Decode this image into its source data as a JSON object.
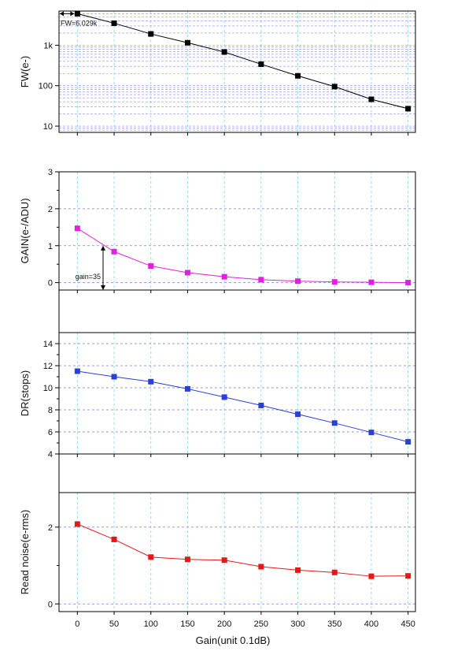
{
  "chart_data": [
    {
      "type": "line",
      "ylabel": "FW(e-)",
      "yscale": "log",
      "ylim": [
        7,
        7000
      ],
      "y_ticks": [
        10,
        100,
        1000
      ],
      "y_tick_labels": [
        "10",
        "100",
        "1k"
      ],
      "x": [
        0,
        50,
        100,
        150,
        200,
        250,
        300,
        350,
        400,
        450
      ],
      "series": [
        {
          "values": [
            6029,
            3500,
            1900,
            1150,
            680,
            340,
            175,
            95,
            46,
            27
          ],
          "color": "#000000",
          "marker": "square"
        }
      ],
      "annotations": [
        {
          "text": "FW=6.029k"
        }
      ],
      "grid": true
    },
    {
      "type": "line",
      "ylabel": "GAIN(e-/ADU)",
      "ylim": [
        -0.2,
        3
      ],
      "y_ticks": [
        0,
        1,
        2,
        3
      ],
      "y_tick_labels": [
        "0",
        "1",
        "2",
        "3"
      ],
      "x": [
        0,
        50,
        100,
        150,
        200,
        250,
        300,
        350,
        400,
        450
      ],
      "series": [
        {
          "values": [
            1.47,
            0.84,
            0.45,
            0.27,
            0.16,
            0.08,
            0.04,
            0.02,
            0.01,
            0.0
          ],
          "color": "#e020e0",
          "marker": "square"
        }
      ],
      "annotations": [
        {
          "text": "gain=35"
        }
      ],
      "grid": true
    },
    {
      "type": "line",
      "ylabel": "DR(stops)",
      "ylim": [
        4,
        15
      ],
      "y_ticks": [
        4,
        6,
        8,
        10,
        12,
        14
      ],
      "y_tick_labels": [
        "4",
        "6",
        "8",
        "10",
        "12",
        "14"
      ],
      "x": [
        0,
        50,
        100,
        150,
        200,
        250,
        300,
        350,
        400,
        450
      ],
      "series": [
        {
          "values": [
            11.5,
            11.0,
            10.55,
            9.9,
            9.15,
            8.4,
            7.6,
            6.8,
            5.95,
            5.1
          ],
          "color": "#2b3ed8",
          "marker": "square"
        }
      ],
      "grid": true
    },
    {
      "type": "line",
      "ylabel": "Read noise(e-rms)",
      "xlabel": "Gain(unit 0.1dB)",
      "ylim": [
        -0.2,
        2.9
      ],
      "y_ticks": [
        0,
        2
      ],
      "y_tick_labels": [
        "0",
        "2"
      ],
      "x": [
        0,
        50,
        100,
        150,
        200,
        250,
        300,
        350,
        400,
        450
      ],
      "x_tick_labels": [
        "0",
        "50",
        "100",
        "150",
        "200",
        "250",
        "300",
        "350",
        "400",
        "450"
      ],
      "xlim": [
        -25,
        460
      ],
      "series": [
        {
          "values": [
            2.08,
            1.68,
            1.22,
            1.16,
            1.14,
            0.97,
            0.88,
            0.82,
            0.72,
            0.73
          ],
          "color": "#e41818",
          "marker": "square"
        }
      ],
      "grid": true
    }
  ]
}
